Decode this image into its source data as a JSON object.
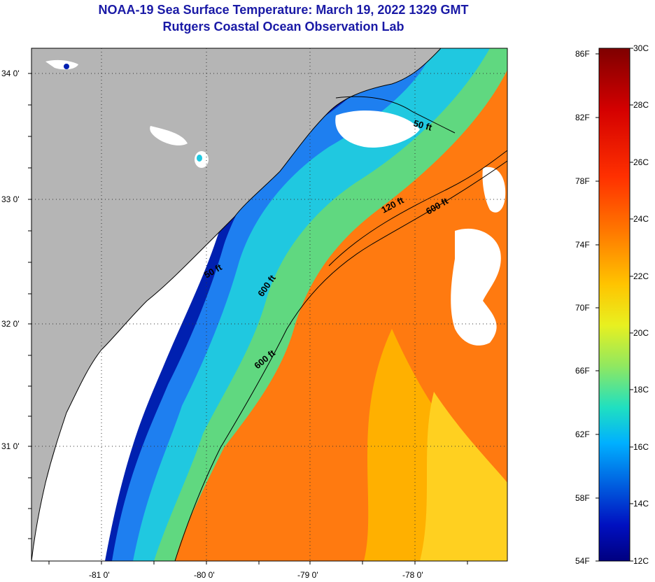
{
  "title": {
    "line1": "NOAA-19 Sea Surface Temperature:  March 19, 2022 1329 GMT",
    "line2": "Rutgers Coastal Ocean Observation Lab"
  },
  "axes": {
    "lat_labels": [
      "34 0'",
      "33 0'",
      "32 0'",
      "31 0'"
    ],
    "lon_labels": [
      "-81 0'",
      "-80 0'",
      "-79 0'",
      "-78 0'"
    ]
  },
  "contours": [
    "50 ft",
    "120 ft",
    "600 ft",
    "50 ft",
    "600 ft",
    "600 ft"
  ],
  "colorbar": {
    "fahrenheit": [
      "86F",
      "82F",
      "78F",
      "74F",
      "70F",
      "66F",
      "62F",
      "58F",
      "54F"
    ],
    "celsius": [
      "30C",
      "28C",
      "26C",
      "24C",
      "22C",
      "20C",
      "18C",
      "16C",
      "14C",
      "12C"
    ],
    "colors": [
      "#7f0000",
      "#d40000",
      "#ff3000",
      "#ff7a00",
      "#ffc400",
      "#e8f020",
      "#90e860",
      "#20e0c0",
      "#00b0ff",
      "#0060e0",
      "#0010c0",
      "#000080"
    ]
  },
  "colors": {
    "land": "#b5b5b5",
    "cloud": "#ffffff",
    "title": "#1a1aa6"
  }
}
